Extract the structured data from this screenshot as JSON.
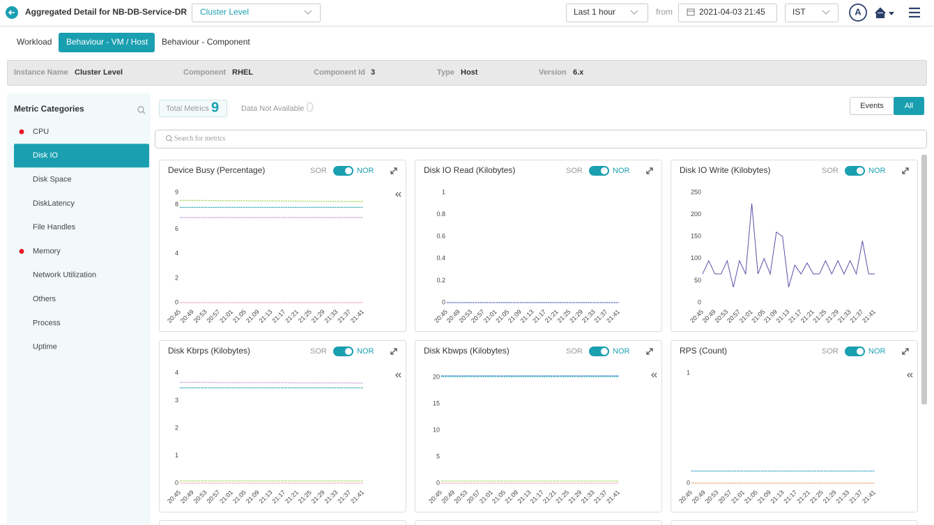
{
  "header": {
    "title": "Aggregated Detail for NB-DB-Service-DR",
    "level_select": "Cluster Level",
    "time_range": "Last 1 hour",
    "from_label": "from",
    "from_date": "2021-04-03 21:45",
    "timezone": "IST",
    "avatar": "A"
  },
  "tabs": [
    "Workload",
    "Behaviour - VM / Host",
    "Behaviour - Component"
  ],
  "active_tab": 1,
  "info": [
    {
      "label": "Instance Name",
      "value": "Cluster Level"
    },
    {
      "label": "Component",
      "value": "RHEL"
    },
    {
      "label": "Component Id",
      "value": "3"
    },
    {
      "label": "Type",
      "value": "Host"
    },
    {
      "label": "Version",
      "value": "6.x"
    }
  ],
  "sidebar": {
    "title": "Metric Categories",
    "items": [
      {
        "label": "CPU",
        "alert": true
      },
      {
        "label": "Disk IO",
        "alert": false
      },
      {
        "label": "Disk Space",
        "alert": false
      },
      {
        "label": "DiskLatency",
        "alert": false
      },
      {
        "label": "File Handles",
        "alert": false
      },
      {
        "label": "Memory",
        "alert": true
      },
      {
        "label": "Network Utilization",
        "alert": false
      },
      {
        "label": "Others",
        "alert": false
      },
      {
        "label": "Process",
        "alert": false
      },
      {
        "label": "Uptime",
        "alert": false
      }
    ],
    "active": 1
  },
  "toolbar": {
    "total_label": "Total Metrics",
    "total": 9,
    "na_label": "Data Not Available",
    "na": 0,
    "filters": [
      "Events",
      "All"
    ],
    "active_filter": 1
  },
  "search_placeholder": "Search for metrics",
  "chart_data": [
    {
      "type": "line",
      "title": "Device Busy (Percentage)",
      "sor": "SOR",
      "nor": "NOR",
      "toggle": true,
      "categories": [
        "20:45",
        "20:49",
        "20:53",
        "20:57",
        "21:01",
        "21:05",
        "21:09",
        "21:13",
        "21:17",
        "21:21",
        "21:25",
        "21:29",
        "21:33",
        "21:37",
        "21:41"
      ],
      "ylim": [
        0,
        9
      ],
      "yticks": [
        0,
        2,
        4,
        6,
        8,
        9
      ],
      "series": [
        {
          "color": "#a8d65a",
          "values": [
            8.35,
            8.35,
            8.34,
            8.33,
            8.32,
            8.32,
            8.31,
            8.3,
            8.3,
            8.29,
            8.28,
            8.28,
            8.27,
            8.26,
            8.26
          ]
        },
        {
          "color": "#1a9fa8",
          "values": [
            7.78,
            7.78,
            7.78,
            7.78,
            7.78,
            7.78,
            7.78,
            7.78,
            7.78,
            7.78,
            7.78,
            7.78,
            7.78,
            7.78,
            7.78
          ]
        },
        {
          "color": "#c39bd8",
          "values": [
            6.95,
            6.95,
            6.95,
            6.95,
            6.95,
            6.95,
            6.95,
            6.95,
            6.95,
            6.95,
            6.95,
            6.95,
            6.95,
            6.95,
            6.95
          ]
        },
        {
          "color": "#f3a3b5",
          "values": [
            0,
            0,
            0,
            0,
            0,
            0,
            0,
            0,
            0,
            0,
            0,
            0,
            0,
            0,
            0
          ]
        }
      ]
    },
    {
      "type": "line",
      "title": "Disk IO Read (Kilobytes)",
      "sor": "SOR",
      "nor": "NOR",
      "toggle": true,
      "categories": [
        "20:45",
        "20:49",
        "20:53",
        "20:57",
        "21:01",
        "21:05",
        "21:09",
        "21:13",
        "21:17",
        "21:21",
        "21:25",
        "21:29",
        "21:33",
        "21:37",
        "21:41"
      ],
      "ylim": [
        0,
        1
      ],
      "yticks": [
        0,
        0.2,
        0.4,
        0.6,
        0.8,
        1
      ],
      "series": [
        {
          "color": "#5b63b8",
          "values": [
            0,
            0,
            0,
            0,
            0,
            0,
            0,
            0,
            0,
            0,
            0,
            0,
            0,
            0,
            0
          ]
        }
      ]
    },
    {
      "type": "line",
      "title": "Disk IO Write (Kilobytes)",
      "sor": "SOR",
      "nor": "NOR",
      "toggle": true,
      "categories": [
        "20:45",
        null,
        "20:49",
        null,
        "20:53",
        null,
        "20:57",
        null,
        "21:01",
        null,
        "21:05",
        null,
        "21:09",
        null,
        "21:13",
        null,
        "21:17",
        null,
        "21:21",
        null,
        "21:25",
        null,
        "21:29",
        null,
        "21:33",
        null,
        "21:37",
        null,
        "21:41"
      ],
      "ylim": [
        0,
        250
      ],
      "yticks": [
        0,
        50,
        100,
        150,
        200,
        250
      ],
      "series": [
        {
          "color": "#5b4fa8",
          "values": [
            65,
            95,
            65,
            65,
            95,
            35,
            95,
            65,
            225,
            65,
            100,
            65,
            160,
            150,
            35,
            85,
            65,
            90,
            65,
            65,
            95,
            65,
            95,
            65,
            95,
            65,
            140,
            65,
            65
          ]
        }
      ]
    },
    {
      "type": "line",
      "title": "Disk Kbrps (Kilobytes)",
      "sor": "SOR",
      "nor": "NOR",
      "toggle": true,
      "categories": [
        "20:45",
        "20:49",
        "20:53",
        "20:57",
        "21:01",
        "21:05",
        "21:09",
        "21:13",
        "21:17",
        "21:21",
        "21:25",
        "21:29",
        "21:33",
        "21:37",
        "21:41"
      ],
      "ylim": [
        0,
        4
      ],
      "yticks": [
        0,
        1,
        2,
        3,
        4
      ],
      "series": [
        {
          "color": "#c39bd8",
          "values": [
            3.66,
            3.66,
            3.66,
            3.65,
            3.65,
            3.65,
            3.65,
            3.65,
            3.65,
            3.64,
            3.64,
            3.64,
            3.64,
            3.64,
            3.63
          ]
        },
        {
          "color": "#1a9fa8",
          "values": [
            3.46,
            3.46,
            3.46,
            3.46,
            3.46,
            3.46,
            3.46,
            3.46,
            3.46,
            3.46,
            3.46,
            3.46,
            3.46,
            3.46,
            3.46
          ]
        },
        {
          "color": "#a8d65a",
          "values": [
            0.08,
            0.08,
            0.08,
            0.08,
            0.08,
            0.08,
            0.08,
            0.08,
            0.08,
            0.08,
            0.08,
            0.08,
            0.08,
            0.08,
            0.08
          ]
        },
        {
          "color": "#f3a3b5",
          "values": [
            0,
            0,
            0,
            0,
            0,
            0,
            0,
            0,
            0,
            0,
            0,
            0,
            0,
            0,
            0
          ]
        }
      ]
    },
    {
      "type": "line",
      "title": "Disk Kbwps (Kilobytes)",
      "sor": "SOR",
      "nor": "NOR",
      "toggle": true,
      "categories": [
        "20:45",
        "20:49",
        "20:53",
        "20:57",
        "21:01",
        "21:05",
        "21:09",
        "21:13",
        "21:17",
        "21:21",
        "21:25",
        "21:29",
        "21:33",
        "21:37",
        "21:41"
      ],
      "ylim": [
        0,
        20.8
      ],
      "yticks": [
        0,
        5,
        10,
        15,
        20
      ],
      "series": [
        {
          "color": "#4a90d9",
          "values": [
            20.3,
            20.3,
            20.3,
            20.3,
            20.3,
            20.3,
            20.3,
            20.3,
            20.3,
            20.3,
            20.3,
            20.3,
            20.3,
            20.3,
            20.3
          ]
        },
        {
          "color": "#1a9fa8",
          "values": [
            20.1,
            20.1,
            20.1,
            20.1,
            20.1,
            20.1,
            20.1,
            20.1,
            20.1,
            20.1,
            20.1,
            20.1,
            20.1,
            20.1,
            20.1
          ]
        },
        {
          "color": "#a8d65a",
          "values": [
            0.4,
            0.4,
            0.4,
            0.4,
            0.4,
            0.4,
            0.4,
            0.4,
            0.4,
            0.4,
            0.4,
            0.4,
            0.4,
            0.4,
            0.4
          ]
        },
        {
          "color": "#f3a3b5",
          "values": [
            0,
            0,
            0,
            0,
            0,
            0,
            0,
            0,
            0,
            0,
            0,
            0,
            0,
            0,
            0
          ]
        }
      ]
    },
    {
      "type": "line",
      "title": "RPS (Count)",
      "sor": "SOR",
      "nor": "NOR",
      "toggle": true,
      "categories": [
        "20:45",
        "20:49",
        "20:53",
        "20:57",
        "21:01",
        "21:05",
        "21:09",
        "21:13",
        "21:17",
        "21:21",
        "21:25",
        "21:29",
        "21:33",
        "21:37",
        "21:41"
      ],
      "ylim": [
        0,
        1
      ],
      "yticks": [
        0,
        1
      ],
      "series": [
        {
          "color": "#3aa0c8",
          "values": [
            0.11,
            0.11,
            0.11,
            0.11,
            0.11,
            0.11,
            0.11,
            0.11,
            0.11,
            0.11,
            0.11,
            0.11,
            0.11,
            0.11,
            0.11
          ]
        },
        {
          "color": "#e8a070",
          "values": [
            0,
            0,
            0,
            0,
            0,
            0,
            0,
            0,
            0,
            0,
            0,
            0,
            0,
            0,
            0
          ]
        }
      ]
    }
  ]
}
